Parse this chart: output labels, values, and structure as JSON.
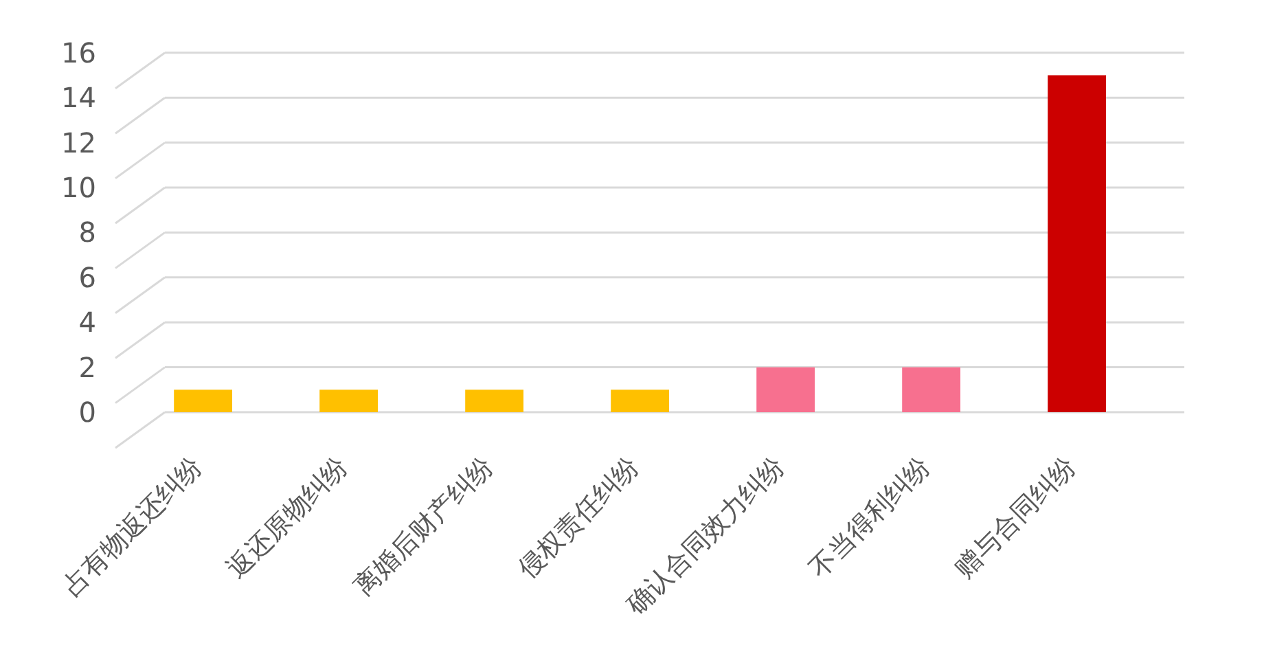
{
  "chart_data": {
    "type": "bar",
    "categories": [
      "占有物返还纠纷",
      "返还原物纠纷",
      "离婚后财产纠纷",
      "侵权责任纠纷",
      "确认合同效力纠纷",
      "不当得利纠纷",
      "赠与合同纠纷"
    ],
    "values": [
      1,
      1,
      1,
      1,
      2,
      2,
      15
    ],
    "colors": [
      "#ffc000",
      "#ffc000",
      "#ffc000",
      "#ffc000",
      "#f7708f",
      "#f7708f",
      "#cc0000"
    ],
    "ylim": [
      0,
      16
    ],
    "yticks": [
      0,
      2,
      4,
      6,
      8,
      10,
      12,
      14,
      16
    ],
    "grid": "y"
  }
}
